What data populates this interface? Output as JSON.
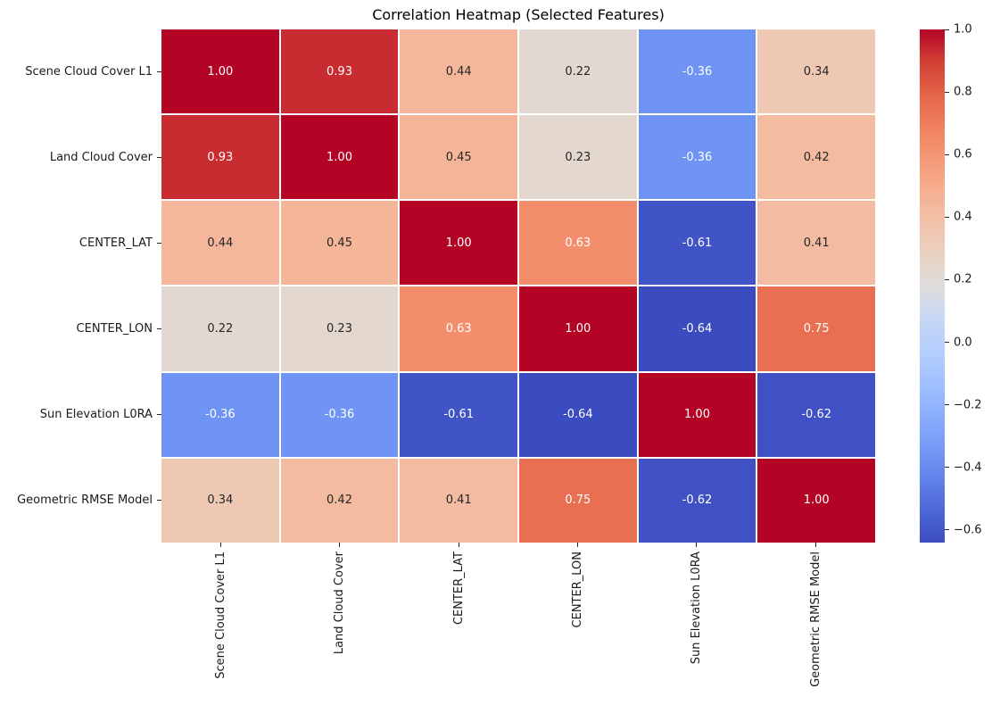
{
  "title": "Correlation Heatmap (Selected Features)",
  "chart_data": {
    "type": "heatmap",
    "title": "Correlation Heatmap (Selected Features)",
    "x_labels": [
      "Scene Cloud Cover L1",
      "Land Cloud Cover",
      "CENTER_LAT",
      "CENTER_LON",
      "Sun Elevation L0RA",
      "Geometric RMSE Model"
    ],
    "y_labels": [
      "Scene Cloud Cover L1",
      "Land Cloud Cover",
      "CENTER_LAT",
      "CENTER_LON",
      "Sun Elevation L0RA",
      "Geometric RMSE Model"
    ],
    "matrix": [
      [
        1.0,
        0.93,
        0.44,
        0.22,
        -0.36,
        0.34
      ],
      [
        0.93,
        1.0,
        0.45,
        0.23,
        -0.36,
        0.42
      ],
      [
        0.44,
        0.45,
        1.0,
        0.63,
        -0.61,
        0.41
      ],
      [
        0.22,
        0.23,
        0.63,
        1.0,
        -0.64,
        0.75
      ],
      [
        -0.36,
        -0.36,
        -0.61,
        -0.64,
        1.0,
        -0.62
      ],
      [
        0.34,
        0.42,
        0.41,
        0.75,
        -0.62,
        1.0
      ]
    ],
    "annotation_format": ".2f",
    "colormap": "coolwarm",
    "vmin": -0.64,
    "vmax": 1.0,
    "grid_on": false,
    "legend_position": "right-colorbar",
    "colorbar": {
      "tick_values": [
        1.0,
        0.8,
        0.6,
        0.4,
        0.2,
        0.0,
        -0.2,
        -0.4,
        -0.6
      ],
      "tick_labels": [
        "1.0",
        "0.8",
        "0.6",
        "0.4",
        "0.2",
        "0.0",
        "−0.2",
        "−0.4",
        "−0.6"
      ]
    },
    "colors": {
      "annotation_dark": "#262626",
      "annotation_light": "#ffffff",
      "gridline": "#ffffff",
      "max_color": "#b40426",
      "min_color": "#3b4cc0",
      "colormap_stops": [
        [
          0.0,
          "#3b4cc0"
        ],
        [
          0.0625,
          "#4d68d7"
        ],
        [
          0.125,
          "#6182ea"
        ],
        [
          0.1875,
          "#769af6"
        ],
        [
          0.25,
          "#8caffe"
        ],
        [
          0.3125,
          "#a1c1ff"
        ],
        [
          0.375,
          "#b5cefd"
        ],
        [
          0.4375,
          "#c8d8f5"
        ],
        [
          0.5,
          "#dddcdb"
        ],
        [
          0.5625,
          "#e9d1c1"
        ],
        [
          0.625,
          "#f2c1a8"
        ],
        [
          0.6875,
          "#f6ae8f"
        ],
        [
          0.75,
          "#f59876"
        ],
        [
          0.8125,
          "#ef7f5e"
        ],
        [
          0.875,
          "#e46348"
        ],
        [
          0.9375,
          "#d23f34"
        ],
        [
          1.0,
          "#b40426"
        ]
      ]
    }
  }
}
